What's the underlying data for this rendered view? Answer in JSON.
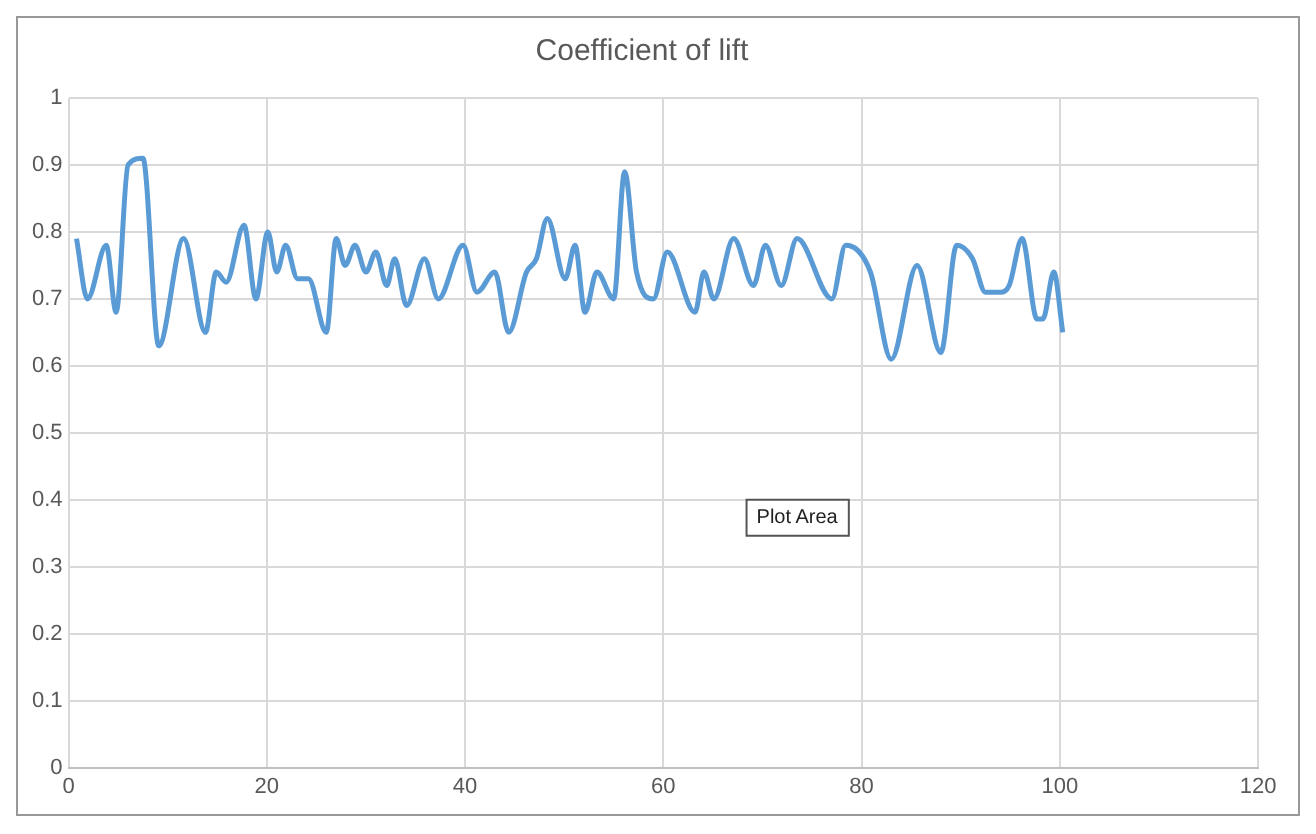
{
  "chart_data": {
    "type": "line",
    "title": "Coefficient of lift",
    "x": [
      0.8,
      1.9,
      3.8,
      4.8,
      6,
      7.5,
      9.1,
      11.6,
      13.8,
      14.9,
      15.9,
      17.7,
      18.9,
      20.1,
      21,
      21.9,
      23.1,
      24.2,
      26,
      27,
      27.9,
      28.9,
      30,
      31,
      32.1,
      32.9,
      34.1,
      35.9,
      37.3,
      39.8,
      41.2,
      43,
      44.4,
      46.2,
      47.2,
      48.3,
      50.1,
      51.1,
      52.1,
      53.3,
      55,
      56.1,
      57.3,
      59,
      60.4,
      63.2,
      64.1,
      65.1,
      67.1,
      69.1,
      70.3,
      71.9,
      73.5,
      77,
      78.4,
      80.9,
      83,
      85.6,
      88,
      89.6,
      91.2,
      92.5,
      94,
      94.9,
      96.2,
      97.7,
      98.3,
      99.4,
      100.3
    ],
    "series": [
      {
        "color": "#5b9bd5",
        "values": [
          0.79,
          0.7,
          0.78,
          0.68,
          0.9,
          0.91,
          0.63,
          0.79,
          0.65,
          0.74,
          0.725,
          0.81,
          0.7,
          0.8,
          0.74,
          0.78,
          0.73,
          0.73,
          0.65,
          0.79,
          0.75,
          0.78,
          0.74,
          0.77,
          0.72,
          0.76,
          0.69,
          0.76,
          0.7,
          0.78,
          0.71,
          0.74,
          0.65,
          0.74,
          0.76,
          0.82,
          0.73,
          0.78,
          0.68,
          0.74,
          0.7,
          0.89,
          0.74,
          0.7,
          0.77,
          0.68,
          0.74,
          0.7,
          0.79,
          0.72,
          0.78,
          0.72,
          0.79,
          0.7,
          0.78,
          0.74,
          0.61,
          0.75,
          0.62,
          0.78,
          0.76,
          0.71,
          0.71,
          0.72,
          0.79,
          0.67,
          0.67,
          0.74,
          0.65
        ]
      }
    ],
    "xlim": [
      0,
      120
    ],
    "xticks": [
      0,
      20,
      40,
      60,
      80,
      100,
      120
    ],
    "ylim": [
      0,
      1
    ],
    "yticks": [
      0,
      0.1,
      0.2,
      0.3,
      0.4,
      0.5,
      0.6,
      0.7,
      0.8,
      0.9,
      1
    ],
    "grid": true,
    "legend": false,
    "marker": "none",
    "line_style": "solid",
    "annotations": [
      "Plot Area"
    ]
  }
}
